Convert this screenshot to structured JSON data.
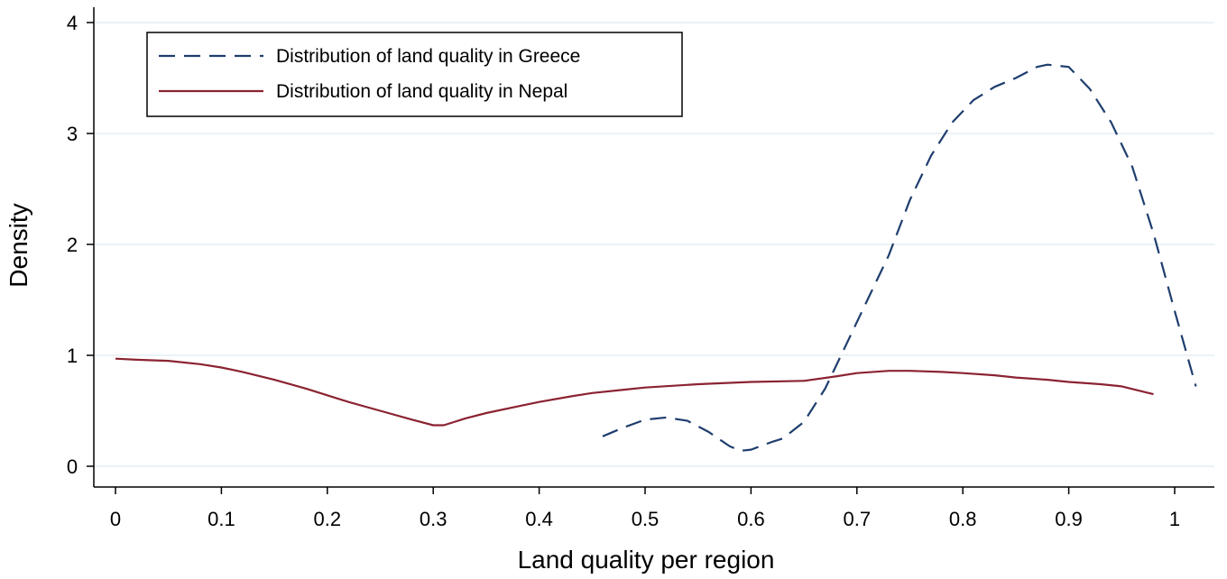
{
  "chart_data": {
    "type": "line",
    "title": "",
    "xlabel": "Land quality per region",
    "ylabel": "Density",
    "xlim": [
      0,
      1.02
    ],
    "ylim": [
      0,
      4
    ],
    "x_ticks": [
      0,
      0.1,
      0.2,
      0.3,
      0.4,
      0.5,
      0.6,
      0.7,
      0.8,
      0.9,
      1
    ],
    "x_tick_labels": [
      "0",
      "0.1",
      "0.2",
      "0.3",
      "0.4",
      "0.5",
      "0.6",
      "0.7",
      "0.8",
      "0.9",
      "1"
    ],
    "y_ticks": [
      0,
      1,
      2,
      3,
      4
    ],
    "y_tick_labels": [
      "0",
      "1",
      "2",
      "3",
      "4"
    ],
    "grid": true,
    "legend_position": "top-left",
    "series": [
      {
        "name": "Distribution of land quality in Greece",
        "color": "#1f3e6e",
        "dash": "dashed",
        "x": [
          0.46,
          0.48,
          0.5,
          0.52,
          0.54,
          0.56,
          0.58,
          0.59,
          0.6,
          0.62,
          0.63,
          0.65,
          0.67,
          0.69,
          0.71,
          0.73,
          0.75,
          0.77,
          0.79,
          0.81,
          0.83,
          0.85,
          0.87,
          0.88,
          0.9,
          0.92,
          0.94,
          0.96,
          0.98,
          1.0,
          1.02
        ],
        "y": [
          0.27,
          0.35,
          0.42,
          0.44,
          0.41,
          0.31,
          0.18,
          0.14,
          0.15,
          0.22,
          0.25,
          0.4,
          0.7,
          1.1,
          1.5,
          1.9,
          2.4,
          2.8,
          3.1,
          3.3,
          3.42,
          3.5,
          3.6,
          3.62,
          3.6,
          3.4,
          3.1,
          2.7,
          2.1,
          1.4,
          0.72
        ]
      },
      {
        "name": "Distribution of land quality in Nepal",
        "color": "#8b2331",
        "dash": "solid",
        "x": [
          0.0,
          0.02,
          0.05,
          0.08,
          0.1,
          0.12,
          0.15,
          0.18,
          0.2,
          0.22,
          0.25,
          0.28,
          0.3,
          0.31,
          0.33,
          0.35,
          0.38,
          0.4,
          0.43,
          0.45,
          0.48,
          0.5,
          0.55,
          0.6,
          0.65,
          0.68,
          0.7,
          0.73,
          0.75,
          0.78,
          0.8,
          0.83,
          0.85,
          0.88,
          0.9,
          0.93,
          0.95,
          0.98
        ],
        "y": [
          0.97,
          0.96,
          0.95,
          0.92,
          0.89,
          0.85,
          0.78,
          0.7,
          0.64,
          0.58,
          0.5,
          0.42,
          0.37,
          0.37,
          0.43,
          0.48,
          0.54,
          0.58,
          0.63,
          0.66,
          0.69,
          0.71,
          0.74,
          0.76,
          0.77,
          0.81,
          0.84,
          0.86,
          0.86,
          0.85,
          0.84,
          0.82,
          0.8,
          0.78,
          0.76,
          0.74,
          0.72,
          0.65
        ]
      }
    ]
  }
}
